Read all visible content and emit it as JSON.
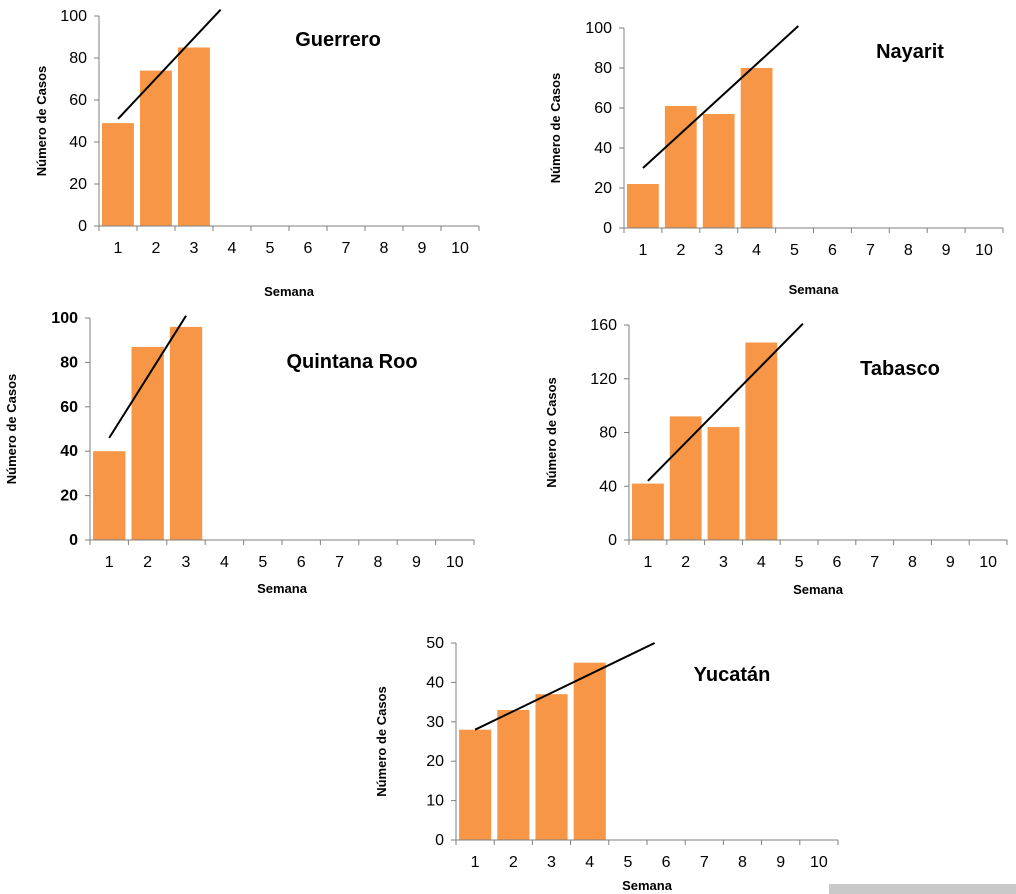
{
  "colors": {
    "bar": "#F79646",
    "axis": "#7f7f7f",
    "trend": "#000000",
    "text": "#000000",
    "footer_bar": "#c9c9c9"
  },
  "chart_data": [
    {
      "type": "bar",
      "title": "Guerrero",
      "xlabel": "Semana",
      "ylabel": "Número de Casos",
      "categories": [
        "1",
        "2",
        "3",
        "4",
        "5",
        "6",
        "7",
        "8",
        "9",
        "10"
      ],
      "values": [
        49,
        74,
        85,
        null,
        null,
        null,
        null,
        null,
        null,
        null
      ],
      "ylim": [
        0,
        100
      ],
      "yticks": [
        0,
        20,
        40,
        60,
        80,
        100
      ],
      "trendline": {
        "type": "linear",
        "x": [
          1,
          3.7
        ],
        "y": [
          51,
          103
        ]
      },
      "bold_y_ticks": false,
      "legend": "none",
      "grid": false
    },
    {
      "type": "bar",
      "title": "Nayarit",
      "xlabel": "Semana",
      "ylabel": "Número de Casos",
      "categories": [
        "1",
        "2",
        "3",
        "4",
        "5",
        "6",
        "7",
        "8",
        "9",
        "10"
      ],
      "values": [
        22,
        61,
        57,
        80,
        null,
        null,
        null,
        null,
        null,
        null
      ],
      "ylim": [
        0,
        100
      ],
      "yticks": [
        0,
        20,
        40,
        60,
        80,
        100
      ],
      "trendline": {
        "type": "linear",
        "x": [
          1,
          5.1
        ],
        "y": [
          30,
          101
        ]
      },
      "bold_y_ticks": false,
      "legend": "none",
      "grid": false
    },
    {
      "type": "bar",
      "title": "Quintana Roo",
      "xlabel": "Semana",
      "ylabel": "Número de Casos",
      "categories": [
        "1",
        "2",
        "3",
        "4",
        "5",
        "6",
        "7",
        "8",
        "9",
        "10"
      ],
      "values": [
        40,
        87,
        96,
        null,
        null,
        null,
        null,
        null,
        null,
        null
      ],
      "ylim": [
        0,
        100
      ],
      "yticks": [
        0,
        20,
        40,
        60,
        80,
        100
      ],
      "trendline": {
        "type": "linear",
        "x": [
          1,
          3
        ],
        "y": [
          46,
          101
        ]
      },
      "bold_y_ticks": true,
      "legend": "none",
      "grid": false
    },
    {
      "type": "bar",
      "title": "Tabasco",
      "xlabel": "Semana",
      "ylabel": "Número de Casos",
      "categories": [
        "1",
        "2",
        "3",
        "4",
        "5",
        "6",
        "7",
        "8",
        "9",
        "10"
      ],
      "values": [
        42,
        92,
        84,
        147,
        null,
        null,
        null,
        null,
        null,
        null
      ],
      "ylim": [
        0,
        160
      ],
      "yticks": [
        0,
        40,
        80,
        120,
        160
      ],
      "trendline": {
        "type": "linear",
        "x": [
          1,
          5.1
        ],
        "y": [
          44,
          161
        ]
      },
      "bold_y_ticks": false,
      "legend": "none",
      "grid": false
    },
    {
      "type": "bar",
      "title": "Yucatán",
      "xlabel": "Semana",
      "ylabel": "Número de Casos",
      "categories": [
        "1",
        "2",
        "3",
        "4",
        "5",
        "6",
        "7",
        "8",
        "9",
        "10"
      ],
      "values": [
        28,
        33,
        37,
        45,
        null,
        null,
        null,
        null,
        null,
        null
      ],
      "ylim": [
        0,
        50
      ],
      "yticks": [
        0,
        10,
        20,
        30,
        40,
        50
      ],
      "trendline": {
        "type": "linear",
        "x": [
          1,
          5.7
        ],
        "y": [
          28,
          50
        ]
      },
      "bold_y_ticks": false,
      "legend": "none",
      "grid": false
    }
  ]
}
